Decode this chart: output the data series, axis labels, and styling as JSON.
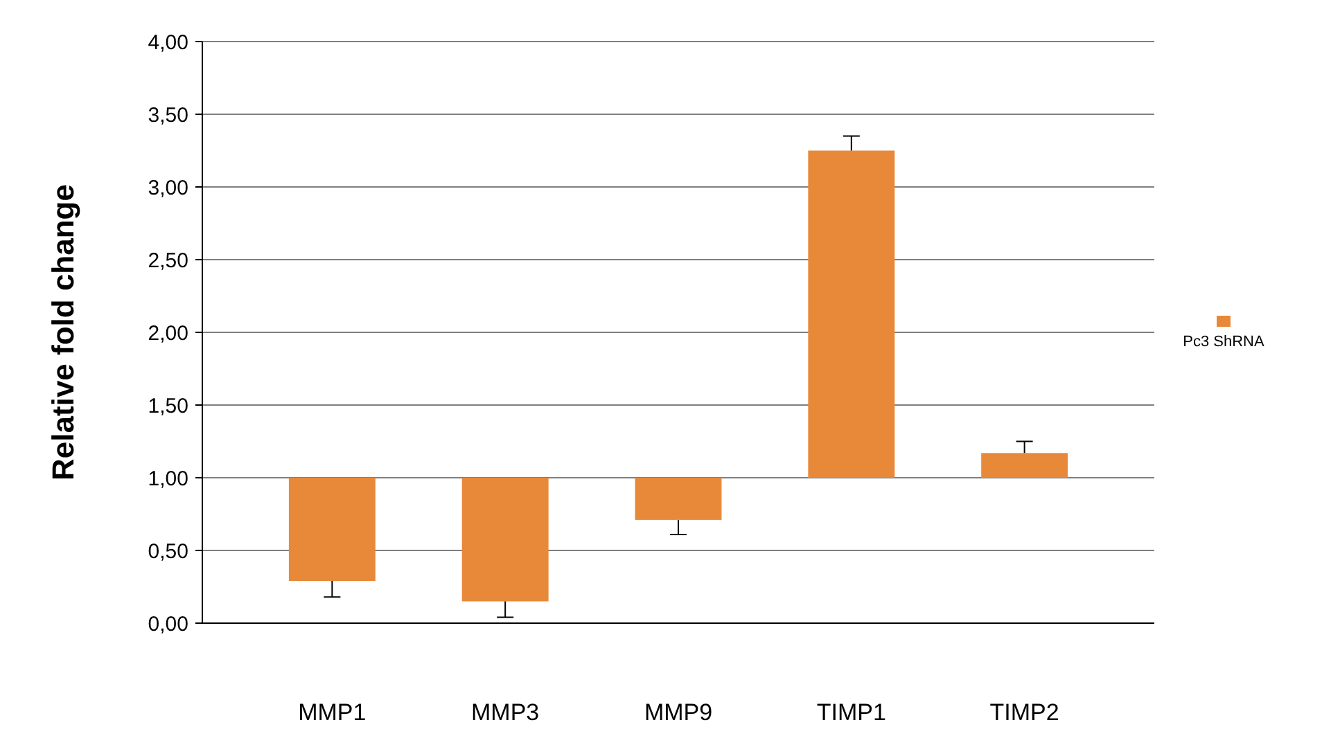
{
  "chart_data": {
    "type": "bar",
    "ylabel": "Relative fold change",
    "categories": [
      "MMP1",
      "MMP3",
      "MMP9",
      "TIMP1",
      "TIMP2"
    ],
    "series": [
      {
        "name": "Pc3 ShRNA",
        "color": "#e8893a",
        "values": [
          -0.71,
          -0.85,
          -0.29,
          2.25,
          0.17
        ],
        "base": [
          1,
          1,
          1,
          1,
          1
        ],
        "errors": [
          [
            0.18,
            0.29
          ],
          [
            0.04,
            0.15
          ],
          [
            0.61,
            0.71
          ],
          [
            3.25,
            3.35
          ],
          [
            1.17,
            1.25
          ]
        ]
      }
    ],
    "ylim": [
      0,
      4
    ],
    "yticks": [
      {
        "value": 0,
        "label": "0,00"
      },
      {
        "value": 0.5,
        "label": "0,50"
      },
      {
        "value": 1,
        "label": "1,00"
      },
      {
        "value": 1.5,
        "label": "1,50"
      },
      {
        "value": 2,
        "label": "2,00"
      },
      {
        "value": 2.5,
        "label": "2,50"
      },
      {
        "value": 3,
        "label": "3,00"
      },
      {
        "value": 3.5,
        "label": "3,50"
      },
      {
        "value": 4,
        "label": "4,00"
      }
    ],
    "grid": "y",
    "legend": "right"
  }
}
